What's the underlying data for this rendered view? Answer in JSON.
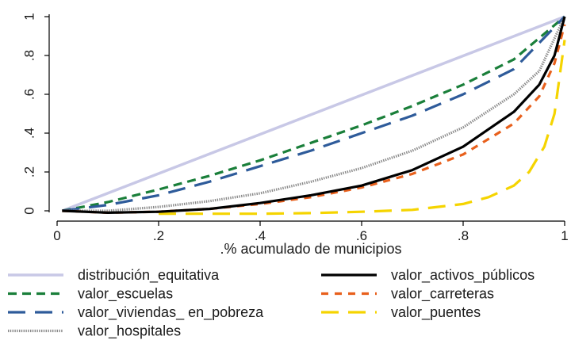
{
  "chart_data": {
    "type": "line",
    "title": "",
    "xlabel": ".% acumulado de municipios",
    "ylabel": "",
    "xlim": [
      0,
      1
    ],
    "ylim": [
      0,
      1
    ],
    "x_ticks": [
      "0",
      ".2",
      ".4",
      ".6",
      ".8",
      "1"
    ],
    "y_ticks": [
      "0",
      ".2",
      ".4",
      ".6",
      ".8",
      "1"
    ],
    "grid": false,
    "legend_position": "bottom",
    "series": [
      {
        "name": "distribución_equitativa",
        "color": "#c8c8e6",
        "style": "solid",
        "x": [
          0.01,
          1.0
        ],
        "y": [
          0.0,
          1.0
        ]
      },
      {
        "name": "valor_escuelas",
        "color": "#1a7f3a",
        "style": "dash",
        "x": [
          0.01,
          0.1,
          0.2,
          0.3,
          0.4,
          0.5,
          0.6,
          0.7,
          0.8,
          0.9,
          1.0
        ],
        "y": [
          0.0,
          0.045,
          0.11,
          0.18,
          0.26,
          0.35,
          0.44,
          0.54,
          0.65,
          0.78,
          1.0
        ]
      },
      {
        "name": "valor_viviendas_ en_pobreza",
        "color": "#2e5b9a",
        "style": "longdash",
        "x": [
          0.01,
          0.1,
          0.2,
          0.3,
          0.4,
          0.5,
          0.6,
          0.7,
          0.8,
          0.9,
          1.0
        ],
        "y": [
          0.0,
          0.03,
          0.08,
          0.15,
          0.23,
          0.31,
          0.4,
          0.49,
          0.6,
          0.73,
          1.0
        ]
      },
      {
        "name": "valor_hospitales",
        "color": "#888888",
        "style": "dot",
        "x": [
          0.01,
          0.1,
          0.2,
          0.3,
          0.4,
          0.5,
          0.6,
          0.7,
          0.8,
          0.9,
          0.95,
          1.0
        ],
        "y": [
          0.0,
          0.0,
          0.02,
          0.05,
          0.09,
          0.15,
          0.22,
          0.31,
          0.43,
          0.6,
          0.72,
          1.0
        ]
      },
      {
        "name": "valor_activos_públicos",
        "color": "#000000",
        "style": "solid",
        "x": [
          0.01,
          0.1,
          0.2,
          0.3,
          0.4,
          0.5,
          0.6,
          0.7,
          0.8,
          0.9,
          0.95,
          0.98,
          1.0
        ],
        "y": [
          0.0,
          -0.01,
          -0.005,
          0.01,
          0.04,
          0.08,
          0.13,
          0.21,
          0.33,
          0.51,
          0.65,
          0.8,
          1.0
        ]
      },
      {
        "name": "valor_carreteras",
        "color": "#e8601c",
        "style": "shortdash",
        "x": [
          0.01,
          0.1,
          0.2,
          0.3,
          0.4,
          0.5,
          0.6,
          0.7,
          0.8,
          0.9,
          0.95,
          0.98,
          1.0
        ],
        "y": [
          0.0,
          -0.01,
          -0.005,
          0.01,
          0.035,
          0.07,
          0.12,
          0.19,
          0.29,
          0.45,
          0.59,
          0.76,
          0.96
        ]
      },
      {
        "name": "valor_puentes",
        "color": "#f5d400",
        "style": "longdash",
        "x": [
          0.2,
          0.3,
          0.4,
          0.5,
          0.6,
          0.7,
          0.8,
          0.85,
          0.9,
          0.93,
          0.96,
          0.98,
          1.0
        ],
        "y": [
          -0.015,
          -0.015,
          -0.015,
          -0.012,
          -0.005,
          0.005,
          0.035,
          0.07,
          0.13,
          0.2,
          0.33,
          0.5,
          0.88
        ]
      }
    ]
  },
  "legend_order": [
    0,
    4,
    1,
    5,
    2,
    6,
    3
  ]
}
